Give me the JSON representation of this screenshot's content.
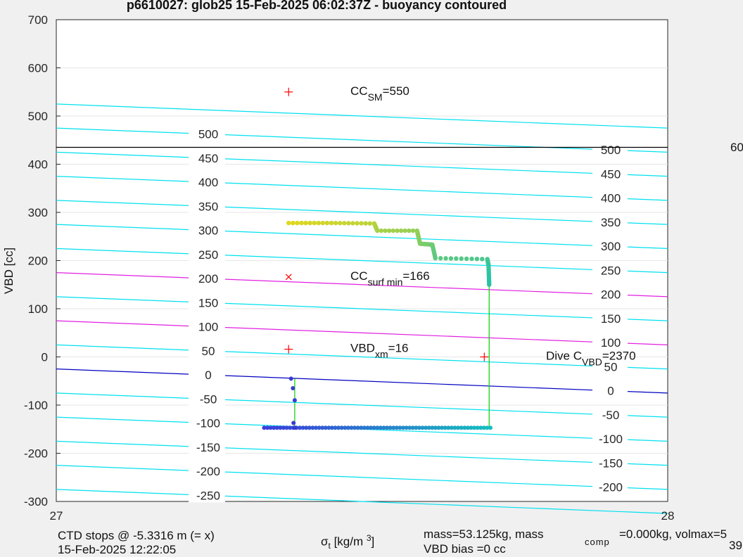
{
  "figure": {
    "title": "p6610027: glob25 15-Feb-2025 06:02:37Z - buoyancy contoured",
    "ctd_line1": "CTD stops @ -5.3316 m (= x)",
    "ctd_line2": "15-Feb-2025 12:22:05",
    "mass_line1": "mass=53.125kg, mass",
    "mass_comp_sub": "comp",
    "mass_line1_rest": "=0.000kg, volmax=5",
    "mass_line2": "VBD bias =0 cc",
    "mass_line2_rest": "39",
    "right_cut_label": "60"
  },
  "chart_data": {
    "type": "scatter",
    "xlabel": "σ_t [kg/m^3]",
    "ylabel": "VBD [cc]",
    "xlim": [
      27,
      28
    ],
    "ylim": [
      -300,
      700
    ],
    "xticks": [
      "27",
      "28"
    ],
    "yticks": [
      -300,
      -200,
      -100,
      0,
      100,
      200,
      300,
      400,
      500,
      600,
      700
    ],
    "grid": true,
    "contour_lines": {
      "levels_left": [
        500,
        450,
        400,
        350,
        300,
        250,
        200,
        150,
        100,
        50,
        0,
        -50,
        -100,
        -150,
        -200,
        -250
      ],
      "levels_right": [
        500,
        450,
        400,
        350,
        300,
        250,
        200,
        150,
        100,
        50,
        0,
        -50,
        -100,
        -150,
        -200
      ],
      "highlight_magenta": [
        100,
        200
      ],
      "highlight_blue": [
        0
      ]
    },
    "horizontal_line": {
      "y": 435,
      "color": "#000000"
    },
    "markers": [
      {
        "x": 27.38,
        "y": 550,
        "symbol": "+",
        "label": "CC",
        "sub": "SM",
        "rest": "=550"
      },
      {
        "x": 27.38,
        "y": 166,
        "symbol": "x",
        "label": "CC",
        "sub": "surf min",
        "rest": "=166"
      },
      {
        "x": 27.38,
        "y": 16,
        "symbol": "+",
        "label": "VBD",
        "sub": "xm",
        "rest": "=16"
      },
      {
        "x": 27.7,
        "y": 0,
        "symbol": "+",
        "label": "Dive C",
        "sub": "VBD",
        "rest": "=2370"
      }
    ],
    "dive_path": [
      {
        "x": 27.384,
        "y": -45
      },
      {
        "x": 27.387,
        "y": -65
      },
      {
        "x": 27.39,
        "y": -90
      },
      {
        "x": 27.388,
        "y": -137
      },
      {
        "x": 27.39,
        "y": -147
      }
    ],
    "climb_path": [
      {
        "x": 27.38,
        "y": 278
      },
      {
        "x": 27.45,
        "y": 278
      },
      {
        "x": 27.52,
        "y": 277
      },
      {
        "x": 27.525,
        "y": 262
      },
      {
        "x": 27.59,
        "y": 262
      },
      {
        "x": 27.595,
        "y": 235
      },
      {
        "x": 27.615,
        "y": 233
      },
      {
        "x": 27.62,
        "y": 205
      },
      {
        "x": 27.705,
        "y": 203
      },
      {
        "x": 27.707,
        "y": 190
      },
      {
        "x": 27.708,
        "y": 150
      }
    ],
    "bottom_path": {
      "x_start": 27.34,
      "x_end": 27.71,
      "y": -147
    },
    "colors": {
      "contour": "#00e0f0",
      "magenta": "#e020e0",
      "blue": "#0000c0",
      "red": "#ff0000",
      "green": "#00d000",
      "grid": "#e6e6e6",
      "axes_bg": "#ffffff"
    }
  }
}
